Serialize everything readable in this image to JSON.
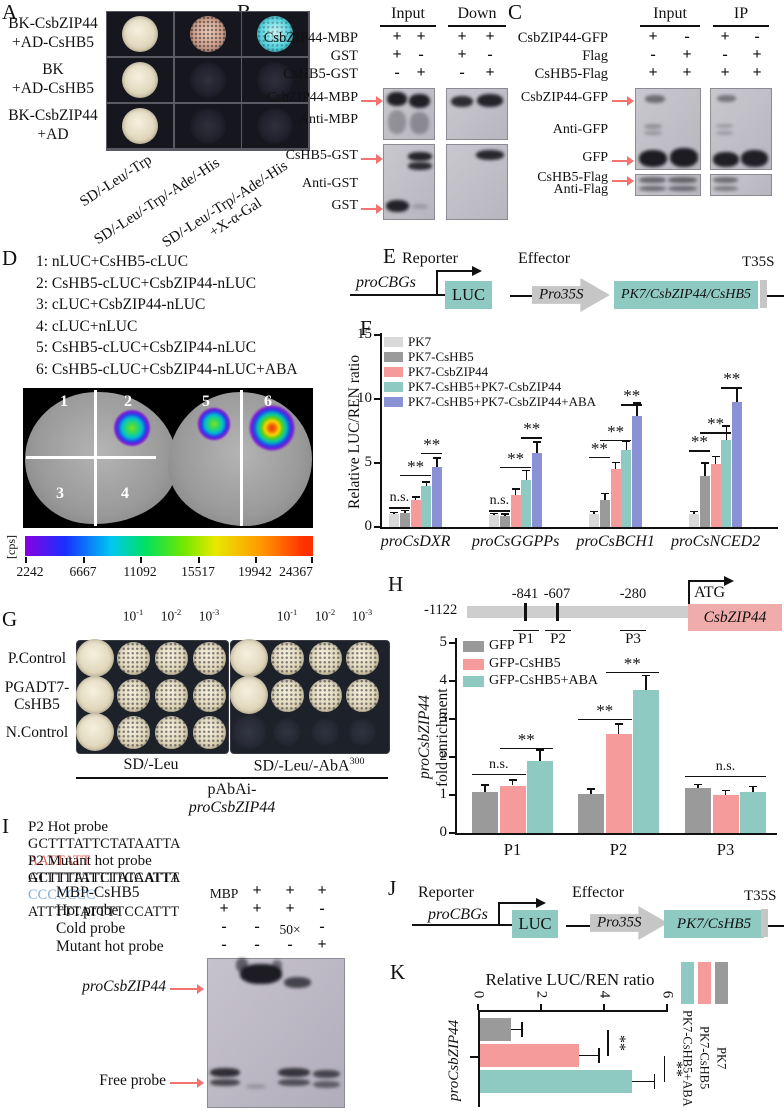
{
  "colors": {
    "teal": "#8ecac1",
    "pink_box": "#efacaa",
    "construct_gray": "#c6c6c6",
    "arrow_red": "#f2736f",
    "seq_red": "#e4605c",
    "seq_blue": "#83aede"
  },
  "panels": {
    "A": {
      "label": "A",
      "rows": [
        [
          "BK-CsbZIP44",
          "+AD-CsHB5"
        ],
        [
          "BK",
          "+AD-CsHB5"
        ],
        [
          "BK-CsbZIP44",
          "+AD"
        ]
      ],
      "media": [
        "SD/-Leu/-Trp",
        "SD/-Leu/-Trp/-Ade/-His",
        "SD/-Leu/-Trp/-Ade/-His",
        "+X-α-Gal"
      ],
      "spots": [
        [
          "cream",
          "rose",
          "cyan"
        ],
        [
          "cream",
          "faint",
          "faint"
        ],
        [
          "cream",
          "faint",
          "faint"
        ]
      ]
    },
    "B": {
      "label": "B",
      "groups": [
        "Input",
        "Down"
      ],
      "rows": [
        [
          "CsbZIP44-MBP",
          "+",
          "+",
          "+",
          "+"
        ],
        [
          "GST",
          "+",
          "-",
          "+",
          "-"
        ],
        [
          "CsHB5-GST",
          "-",
          "+",
          "-",
          "+"
        ]
      ],
      "blot_labels": [
        "CsbZIP44-MBP",
        "Anti-MBP",
        "CsHB5-GST",
        "Anti-GST",
        "GST"
      ]
    },
    "C": {
      "label": "C",
      "groups": [
        "Input",
        "IP"
      ],
      "rows": [
        [
          "CsbZIP44-GFP",
          "+",
          "-",
          "+",
          "-"
        ],
        [
          "Flag",
          "-",
          "+",
          "-",
          "+"
        ],
        [
          "CsHB5-Flag",
          "+",
          "+",
          "+",
          "+"
        ]
      ],
      "blot_labels": [
        "CsbZIP44-GFP",
        "Anti-GFP",
        "GFP",
        "CsHB5-Flag",
        "Anti-Flag"
      ]
    },
    "D": {
      "label": "D",
      "legend": [
        "1: nLUC+CsHB5-cLUC",
        "2: CsHB5-cLUC+CsbZIP44-nLUC",
        "3: cLUC+CsbZIP44-nLUC",
        "4: cLUC+nLUC",
        "5: CsHB5-cLUC+CsbZIP44-nLUC",
        "6: CsHB5-cLUC+CsbZIP44-nLUC+ABA"
      ],
      "leaf_numbers": [
        "1",
        "2",
        "3",
        "4",
        "5",
        "6"
      ],
      "scale_unit": "[cps]",
      "scale_values": [
        "2242",
        "6667",
        "11092",
        "15517",
        "19942",
        "24367"
      ]
    },
    "E": {
      "label": "E",
      "reporter_title": "Reporter",
      "promoter": "proCBGs",
      "reporter_gene": "LUC",
      "effector_title": "Effector",
      "effector_promoter": "Pro35S",
      "effector_gene": "PK7/CsbZIP44/CsHB5",
      "terminator": "T35S"
    },
    "G": {
      "label": "G",
      "dilution_base": "10",
      "dilutions": [
        "-1",
        "-2",
        "-3"
      ],
      "row_labels": [
        [
          "P.Control"
        ],
        [
          "PGADT7-",
          "CsHB5"
        ],
        [
          "N.Control"
        ]
      ],
      "media_left": "SD/-Leu",
      "media_right": "SD/-Leu/-AbA",
      "media_right_sup": "300",
      "caption_prefix": "pAbAi-",
      "caption_gene": "proCsbZIP44"
    },
    "H": {
      "label": "H",
      "map_start": "-1122",
      "map_sites": [
        "-841",
        "-607",
        "-280"
      ],
      "map_atg": "ATG",
      "map_gene": "CsbZIP44",
      "map_probes": [
        "P1",
        "P2",
        "P3"
      ]
    },
    "I": {
      "label": "I",
      "probes": [
        {
          "title": "P2 Hot probe",
          "left": "GCTTTATTCTATAATTA",
          "core": "AATTATT",
          "right": "ATTTTTATTTTCCATTT",
          "core_color": "#e4605c"
        },
        {
          "title": "P2 Mutant hot probe",
          "left": "GCTTTATTCTATAATTA",
          "core": "CCCCCCC",
          "right": "ATTTTTATTTTCCATTT",
          "core_color": "#83aede"
        }
      ],
      "rows": [
        [
          "MBP-CsHB5",
          "MBP",
          "+",
          "+",
          "+"
        ],
        [
          "Hot probe",
          "+",
          "+",
          "+",
          "-"
        ],
        [
          "Cold probe",
          "-",
          "-",
          "50×",
          "-"
        ],
        [
          "Mutant hot probe",
          "-",
          "-",
          "-",
          "+"
        ]
      ],
      "band_labels": [
        "proCsbZIP44",
        "Free probe"
      ]
    },
    "J": {
      "label": "J",
      "reporter_title": "Reporter",
      "promoter": "proCBGs",
      "reporter_gene": "LUC",
      "effector_title": "Effector",
      "effector_promoter": "Pro35S",
      "effector_gene": "PK7/CsHB5",
      "terminator": "T35S"
    }
  },
  "chart_data": [
    {
      "id": "chartF",
      "panel": "F",
      "type": "bar",
      "ylabel": "Relative LUC/REN ratio",
      "ylim": [
        0,
        15
      ],
      "yticks": [
        0,
        5,
        10,
        15
      ],
      "categories": [
        "proCsDXR",
        "proCsGGPPs",
        "proCsBCH1",
        "proCsNCED2"
      ],
      "series": [
        {
          "name": "PK7",
          "color": "#d9d9d9",
          "values": [
            1.0,
            0.9,
            1.0,
            1.0
          ],
          "errors": [
            0.15,
            0.15,
            0.2,
            0.2
          ]
        },
        {
          "name": "PK7-CsHB5",
          "color": "#9a9a9a",
          "values": [
            1.1,
            0.85,
            2.1,
            4.0
          ],
          "errors": [
            0.2,
            0.15,
            0.5,
            1.0
          ]
        },
        {
          "name": "PK7-CsbZIP44",
          "color": "#f59b9b",
          "values": [
            2.1,
            2.5,
            4.5,
            4.9
          ],
          "errors": [
            0.25,
            0.45,
            0.55,
            0.6
          ]
        },
        {
          "name": "PK7-CsHB5+PK7-CsbZIP44",
          "color": "#8ecac1",
          "values": [
            3.2,
            3.7,
            6.0,
            6.8
          ],
          "errors": [
            0.3,
            0.7,
            0.7,
            1.1
          ]
        },
        {
          "name": "PK7-CsHB5+PK7-CsbZIP44+ABA",
          "color": "#8a91d5",
          "values": [
            4.7,
            5.8,
            8.7,
            9.8
          ],
          "errors": [
            0.7,
            0.85,
            1.0,
            1.1
          ]
        }
      ],
      "significance": [
        [
          {
            "label": "n.s.",
            "from": 0,
            "to": 1,
            "y": 1.55
          },
          {
            "label": "**",
            "from": 1,
            "to": 3,
            "y": 4.1
          },
          {
            "label": "**",
            "from": 3,
            "to": 4,
            "y": 5.8
          }
        ],
        [
          {
            "label": "n.s.",
            "from": 0,
            "to": 1,
            "y": 1.3
          },
          {
            "label": "**",
            "from": 1,
            "to": 3,
            "y": 4.7
          },
          {
            "label": "**",
            "from": 3,
            "to": 4,
            "y": 7.0
          }
        ],
        [
          {
            "label": "**",
            "from": 0,
            "to": 1,
            "y": 5.5
          },
          {
            "label": "**",
            "from": 1,
            "to": 3,
            "y": 6.8
          },
          {
            "label": "**",
            "from": 3,
            "to": 4,
            "y": 9.6
          }
        ],
        [
          {
            "label": "**",
            "from": 0,
            "to": 1,
            "y": 6.0
          },
          {
            "label": "**",
            "from": 1,
            "to": 3,
            "y": 7.4
          },
          {
            "label": "**",
            "from": 3,
            "to": 4,
            "y": 10.9
          }
        ]
      ],
      "legend_position": "top-left",
      "grid": false
    },
    {
      "id": "chartH",
      "panel": "H",
      "type": "bar",
      "ylabel_italic": "proCsbZIP44",
      "ylabel_rest": " fold enrichment",
      "ylim": [
        0,
        5
      ],
      "yticks": [
        0,
        1,
        2,
        3,
        4,
        5
      ],
      "categories": [
        "P1",
        "P2",
        "P3"
      ],
      "series": [
        {
          "name": "GFP",
          "color": "#9a9a9a",
          "values": [
            1.08,
            1.03,
            1.18
          ],
          "errors": [
            0.18,
            0.13,
            0.1
          ]
        },
        {
          "name": "GFP-CsHB5",
          "color": "#f59b9b",
          "values": [
            1.25,
            2.6,
            1.0
          ],
          "errors": [
            0.15,
            0.27,
            0.12
          ]
        },
        {
          "name": "GFP-CsHB5+ABA",
          "color": "#8ecac1",
          "values": [
            1.9,
            3.77,
            1.07
          ],
          "errors": [
            0.28,
            0.38,
            0.15
          ]
        }
      ],
      "significance": [
        [
          {
            "label": "n.s.",
            "from": 0,
            "to": 1,
            "y": 1.55
          },
          {
            "label": "**",
            "from": 1,
            "to": 2,
            "y": 2.25
          }
        ],
        [
          {
            "label": "**",
            "from": 0,
            "to": 1,
            "y": 3.0
          },
          {
            "label": "**",
            "from": 1,
            "to": 2,
            "y": 4.25
          }
        ],
        [
          {
            "label": "n.s.",
            "from": 0,
            "to": 2,
            "y": 1.5
          }
        ]
      ],
      "legend_position": "top-left",
      "grid": false
    },
    {
      "id": "chartK",
      "panel": "K",
      "type": "horizontal-bar",
      "title": "Relative LUC/REN ratio",
      "xlim": [
        0,
        6
      ],
      "xticks": [
        0,
        2,
        4,
        6
      ],
      "category": "proCsbZIP44",
      "series": [
        {
          "name": "PK7",
          "color": "#9a9a9a",
          "value": 1.0,
          "error": 0.35
        },
        {
          "name": "PK7-CsHB5",
          "color": "#f59b9b",
          "value": 3.15,
          "error": 0.65
        },
        {
          "name": "PK7-CsHB5+ABA",
          "color": "#8ecac1",
          "value": 4.85,
          "error": 0.7
        }
      ],
      "significance": [
        {
          "label": "**",
          "from": 0,
          "to": 1,
          "x": 4.1
        },
        {
          "label": "**",
          "from": 1,
          "to": 2,
          "x": 5.9
        }
      ]
    }
  ]
}
